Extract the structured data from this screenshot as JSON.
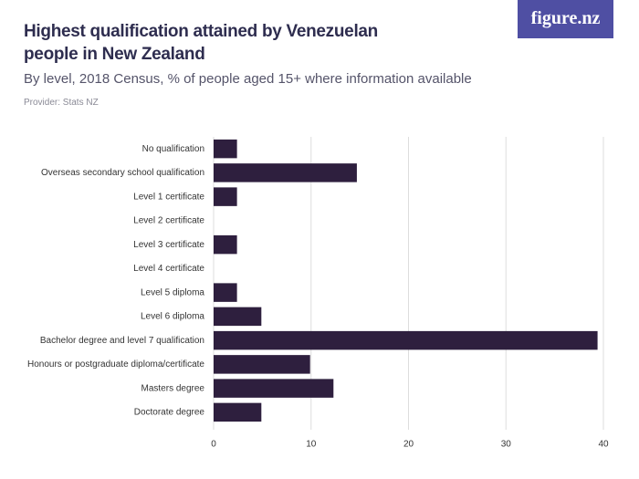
{
  "logo": "figure.nz",
  "chart_data": {
    "type": "bar",
    "orientation": "horizontal",
    "title": "Highest qualification attained by Venezuelan people in New Zealand",
    "subtitle": "By level, 2018 Census, % of people aged 15+ where information available",
    "source": "Provider: Stats NZ",
    "categories": [
      "No qualification",
      "Overseas secondary school qualification",
      "Level 1 certificate",
      "Level 2 certificate",
      "Level 3 certificate",
      "Level 4 certificate",
      "Level 5 diploma",
      "Level 6 diploma",
      "Bachelor degree and level 7 qualification",
      "Honours or postgraduate diploma/certificate",
      "Masters degree",
      "Doctorate degree"
    ],
    "values": [
      2.4,
      14.7,
      2.4,
      0,
      2.4,
      0,
      2.4,
      4.9,
      39.4,
      9.9,
      12.3,
      4.9
    ],
    "color": "#2e1f3e",
    "xlim": [
      0,
      40
    ],
    "xticks": [
      0,
      10,
      20,
      30,
      40
    ],
    "grid": true
  }
}
